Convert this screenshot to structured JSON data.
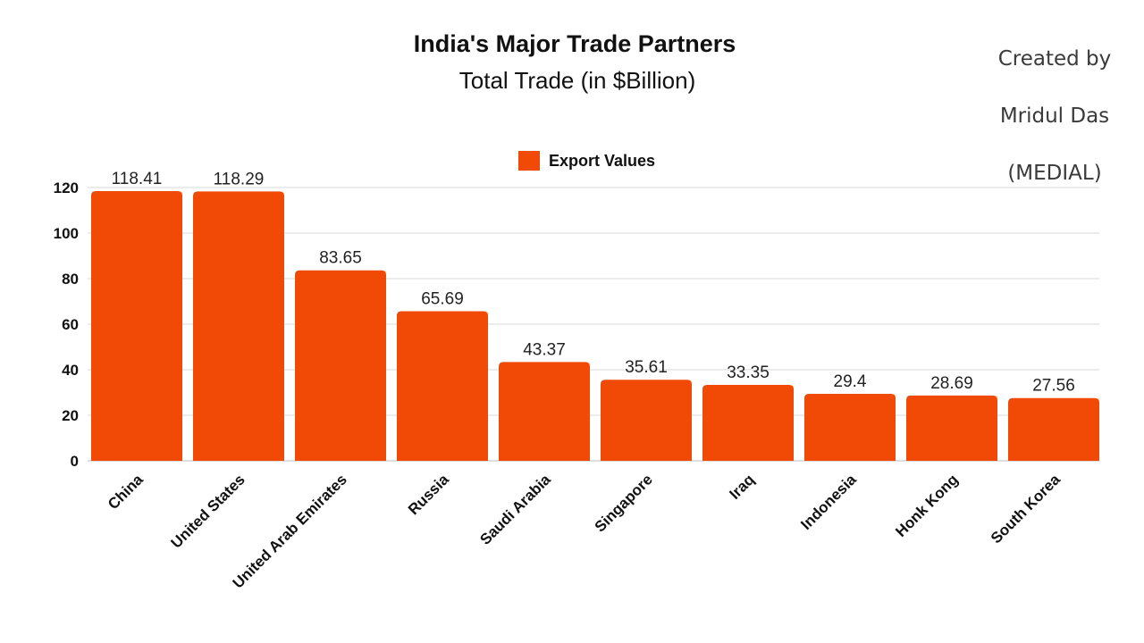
{
  "header": {
    "title": "India's Major Trade Partners",
    "subtitle": "Total Trade (in $Billion)"
  },
  "credit": {
    "line1": "Created by",
    "line2": "Mridul Das",
    "line3": "(MEDIAL)"
  },
  "colors": {
    "bar": "#f04a06",
    "grid": "#d9d9d9",
    "axis": "#bdbdbd"
  },
  "chart_data": {
    "type": "bar",
    "title": "India's Major Trade Partners",
    "subtitle": "Total Trade (in $Billion)",
    "xlabel": "",
    "ylabel": "",
    "categories": [
      "China",
      "United States",
      "United Arab Emirates",
      "Russia",
      "Saudi Arabia",
      "Singapore",
      "Iraq",
      "Indonesia",
      "Honk Kong",
      "South Korea"
    ],
    "series": [
      {
        "name": "Export Values",
        "values": [
          118.41,
          118.29,
          83.65,
          65.69,
          43.37,
          35.61,
          33.35,
          29.4,
          28.69,
          27.56
        ],
        "data_labels": [
          "118.41",
          "118.29",
          "83.65",
          "65.69",
          "43.37",
          "35.61",
          "33.35",
          "29.4",
          "28.69",
          "27.56"
        ]
      }
    ],
    "ylim": [
      0,
      120
    ],
    "yticks": [
      0,
      20,
      40,
      60,
      80,
      100,
      120
    ],
    "grid": true,
    "legend_position": "top-center"
  }
}
